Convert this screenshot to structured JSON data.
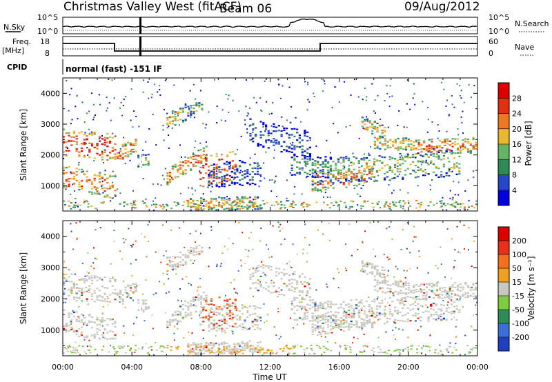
{
  "header": {
    "station": "Christmas Valley West (fitACF)",
    "beam": "Beam 06",
    "date": "09/Aug/2012"
  },
  "nsky_panel": {
    "left_label": "N.Sky",
    "right_label": "N.Search",
    "left_ticks": [
      "10^5",
      "10^0"
    ],
    "right_ticks": [
      "10^5",
      "10^0"
    ]
  },
  "freq_panel": {
    "label_line1": "Freq.",
    "label_line2": "[MHz]",
    "left_ticks": [
      "18",
      "8"
    ],
    "right_ticks": [
      "60",
      "0"
    ],
    "right_label": "Nave"
  },
  "cpid": {
    "label": "CPID",
    "mode": "normal (fast) -151 IF"
  },
  "chart_data": [
    {
      "type": "heatmap",
      "name": "power",
      "ylabel": "Slant Range [km]",
      "y_ticks": [
        1000,
        2000,
        3000,
        4000
      ],
      "ylim": [
        180,
        4500
      ],
      "x_ticks": [
        "00:00",
        "04:00",
        "08:00",
        "12:00",
        "16:00",
        "20:00",
        "00:00"
      ],
      "colorbar_label": "Power [dB]",
      "colorbar_ticks": [
        "28",
        "24",
        "20",
        "16",
        "12",
        "8",
        "4"
      ],
      "colorbar_colors": [
        "#0000dd",
        "#2846c8",
        "#2e8b57",
        "#66b366",
        "#e8b830",
        "#f07820",
        "#e03010",
        "#dd0000"
      ]
    },
    {
      "type": "heatmap",
      "name": "velocity",
      "ylabel": "Slant Range [km]",
      "y_ticks": [
        1000,
        2000,
        3000,
        4000
      ],
      "ylim": [
        180,
        4500
      ],
      "x_ticks": [
        "00:00",
        "04:00",
        "08:00",
        "12:00",
        "16:00",
        "20:00",
        "00:00"
      ],
      "xlabel": "Time UT",
      "colorbar_label": "Velocity [m s⁻¹]",
      "colorbar_ticks": [
        "200",
        "100",
        "50",
        "15",
        "-15",
        "-50",
        "-100",
        "-200"
      ],
      "colorbar_colors": [
        "#2040c0",
        "#3a6ed8",
        "#2e8b57",
        "#80cc40",
        "#c8c8c0",
        "#f0a020",
        "#f07020",
        "#e83018",
        "#dd0000"
      ]
    }
  ]
}
